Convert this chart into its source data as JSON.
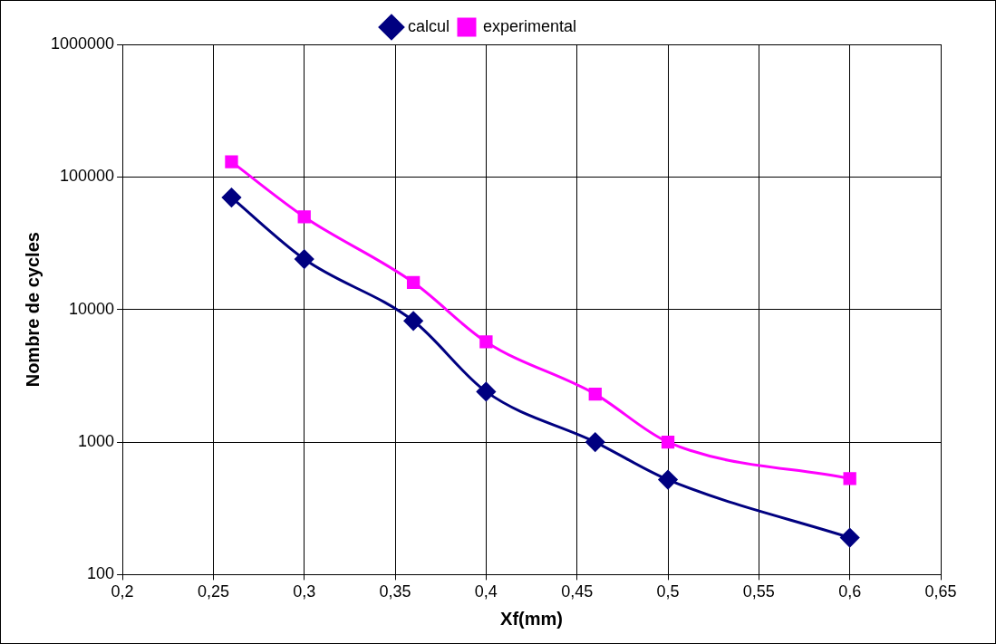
{
  "chart_data": {
    "type": "line",
    "xlabel": "Xf(mm)",
    "ylabel": "Nombre de cycles",
    "x": [
      0.26,
      0.3,
      0.36,
      0.4,
      0.46,
      0.5,
      0.6
    ],
    "series": [
      {
        "name": "calcul",
        "color": "#000080",
        "marker": "diamond",
        "values": [
          70000,
          24000,
          8200,
          2400,
          1000,
          520,
          190
        ]
      },
      {
        "name": "experimental",
        "color": "#ff00ff",
        "marker": "square",
        "values": [
          130000,
          50000,
          16000,
          5700,
          2300,
          1000,
          530
        ]
      }
    ],
    "xlim": [
      0.2,
      0.65
    ],
    "xticks": [
      {
        "value": 0.2,
        "label": "0,2"
      },
      {
        "value": 0.25,
        "label": "0,25"
      },
      {
        "value": 0.3,
        "label": "0,3"
      },
      {
        "value": 0.35,
        "label": "0,35"
      },
      {
        "value": 0.4,
        "label": "0,4"
      },
      {
        "value": 0.45,
        "label": "0,45"
      },
      {
        "value": 0.5,
        "label": "0,5"
      },
      {
        "value": 0.55,
        "label": "0,55"
      },
      {
        "value": 0.6,
        "label": "0,6"
      },
      {
        "value": 0.65,
        "label": "0,65"
      }
    ],
    "ylim": [
      100,
      1000000
    ],
    "yticks": [
      100,
      1000,
      10000,
      100000,
      1000000
    ],
    "log": "y",
    "grid": true,
    "legend": "top",
    "line_style": "solid"
  }
}
